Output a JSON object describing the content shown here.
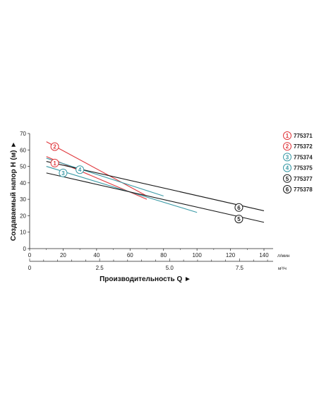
{
  "chart_data": {
    "type": "line",
    "xlabel": "Производительность Q ►",
    "ylabel": "Создаваемый напор H (м) ►",
    "x_unit": "л/мин",
    "x2_unit": "м³/ч",
    "xlim": [
      0,
      145
    ],
    "ylim": [
      0,
      70
    ],
    "x_ticks": [
      "0",
      "20",
      "40",
      "60",
      "80",
      "100",
      "120",
      "140"
    ],
    "y_ticks": [
      "0",
      "10",
      "20",
      "30",
      "40",
      "50",
      "60",
      "70"
    ],
    "x2_ticks": [
      "0",
      "2.5",
      "5.0",
      "7.5"
    ],
    "grid": false,
    "legend_position": "right",
    "series": [
      {
        "name": "775371",
        "marker": "1",
        "color": "#e0393e",
        "x": [
          10,
          70
        ],
        "y": [
          56,
          30
        ]
      },
      {
        "name": "775372",
        "marker": "2",
        "color": "#e0393e",
        "x": [
          10,
          70
        ],
        "y": [
          65,
          32
        ]
      },
      {
        "name": "775374",
        "marker": "3",
        "color": "#3a9aa6",
        "x": [
          10,
          100
        ],
        "y": [
          50,
          22
        ]
      },
      {
        "name": "775375",
        "marker": "4",
        "color": "#3a9aa6",
        "x": [
          10,
          80
        ],
        "y": [
          55,
          32
        ]
      },
      {
        "name": "775377",
        "marker": "5",
        "color": "#1a1a1a",
        "x": [
          10,
          140
        ],
        "y": [
          46,
          16
        ]
      },
      {
        "name": "775378",
        "marker": "6",
        "color": "#1a1a1a",
        "x": [
          10,
          140
        ],
        "y": [
          53,
          23
        ]
      }
    ],
    "curve_markers": [
      {
        "label": "1",
        "series": 0,
        "x": 15,
        "y": 52
      },
      {
        "label": "2",
        "series": 1,
        "x": 15,
        "y": 62
      },
      {
        "label": "3",
        "series": 2,
        "x": 20,
        "y": 46
      },
      {
        "label": "4",
        "series": 3,
        "x": 30,
        "y": 48
      },
      {
        "label": "5",
        "series": 4,
        "x": 125,
        "y": 18
      },
      {
        "label": "6",
        "series": 5,
        "x": 125,
        "y": 25
      }
    ]
  }
}
